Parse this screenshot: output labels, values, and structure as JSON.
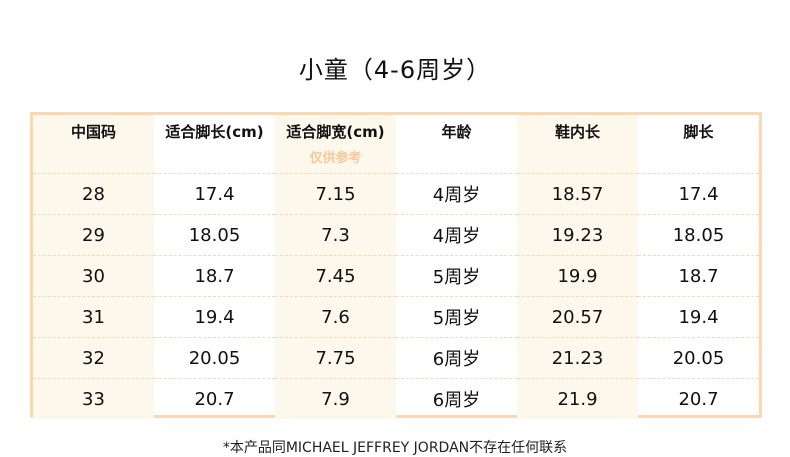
{
  "title": "小童（4-6周岁）",
  "table": {
    "headers": [
      "中国码",
      "适合脚长(cm)",
      "适合脚宽(cm)",
      "年龄",
      "鞋内长",
      "脚长"
    ],
    "width_note": "仅供参考",
    "rows": [
      [
        "28",
        "17.4",
        "7.15",
        "4周岁",
        "18.57",
        "17.4"
      ],
      [
        "29",
        "18.05",
        "7.3",
        "4周岁",
        "19.23",
        "18.05"
      ],
      [
        "30",
        "18.7",
        "7.45",
        "5周岁",
        "19.9",
        "18.7"
      ],
      [
        "31",
        "19.4",
        "7.6",
        "5周岁",
        "20.57",
        "19.4"
      ],
      [
        "32",
        "20.05",
        "7.75",
        "6周岁",
        "21.23",
        "20.05"
      ],
      [
        "33",
        "20.7",
        "7.9",
        "6周岁",
        "21.9",
        "20.7"
      ]
    ]
  },
  "footer": "*本产品同MICHAEL JEFFREY JORDAN不存在任何联系",
  "colors": {
    "border": "#fbd8b2",
    "column_tint": "#fdf8ec",
    "note": "#f7c89a"
  }
}
